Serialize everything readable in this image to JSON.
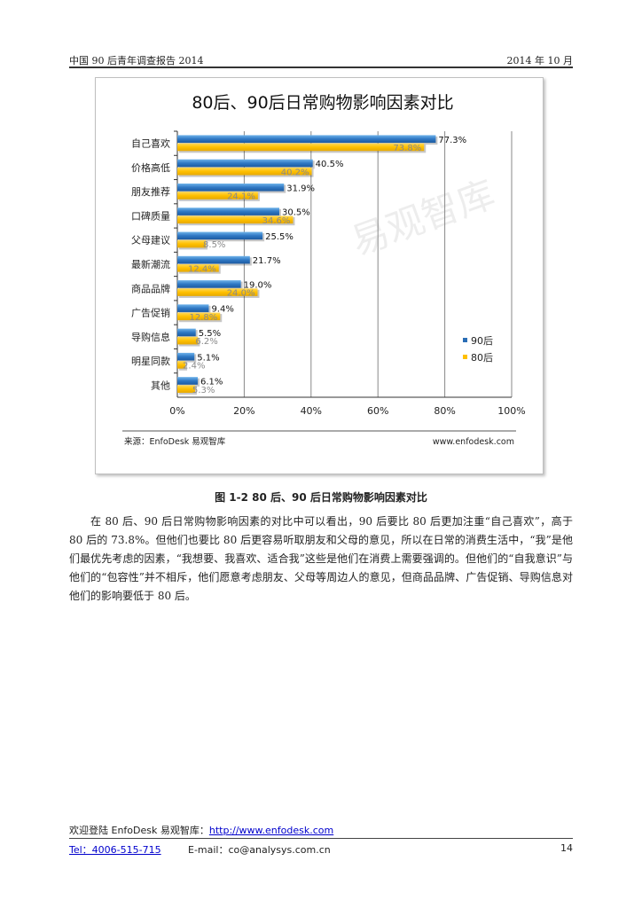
{
  "header": {
    "left": "中国 90 后青年调查报告 2014",
    "right": "2014 年 10 月"
  },
  "chart_data": {
    "type": "bar",
    "title": "80后、90后日常购物影响因素对比",
    "categories": [
      "自己喜欢",
      "价格高低",
      "朋友推荐",
      "口碑质量",
      "父母建议",
      "最新潮流",
      "商品品牌",
      "广告促销",
      "导购信息",
      "明星同款",
      "其他"
    ],
    "series": [
      {
        "name": "90后",
        "values": [
          77.3,
          40.5,
          31.9,
          30.5,
          25.5,
          21.7,
          19.0,
          9.4,
          5.5,
          5.1,
          6.1
        ],
        "labels": [
          "77.3%",
          "40.5%",
          "31.9%",
          "30.5%",
          "25.5%",
          "21.7%",
          "19.0%",
          "9.4%",
          "5.5%",
          "5.1%",
          "6.1%"
        ],
        "color": "#2a6db5"
      },
      {
        "name": "80后",
        "values": [
          73.8,
          40.2,
          24.1,
          34.6,
          8.5,
          12.4,
          24.0,
          12.8,
          6.2,
          2.4,
          5.3
        ],
        "labels": [
          "73.8%",
          "40.2%",
          "24.1%",
          "34.6%",
          "8.5%",
          "12.4%",
          "24.0%",
          "12.8%",
          "6.2%",
          "2.4%",
          "5.3%"
        ],
        "color": "#ffc000"
      }
    ],
    "xlim": [
      0,
      100
    ],
    "xticks": [
      "0%",
      "20%",
      "40%",
      "60%",
      "80%",
      "100%"
    ],
    "xtick_values": [
      0,
      20,
      40,
      60,
      80,
      100
    ],
    "grid": true,
    "legend_position": "right",
    "source": "来源：EnfoDesk 易观智库",
    "website": "www.enfodesk.com",
    "watermark": "易观智库"
  },
  "caption": "图 1-2   80 后、90 后日常购物影响因素对比",
  "body": "在 80 后、90 后日常购物影响因素的对比中可以看出，90 后要比 80 后更加注重“自己喜欢”，高于 80 后的 73.8%。但他们也要比 80 后更容易听取朋友和父母的意见，所以在日常的消费生活中，“我”是他们最优先考虑的因素，“我想要、我喜欢、适合我”这些是他们在消费上需要强调的。但他们的“自我意识”与他们的“包容性”并不相斥，他们愿意考虑朋友、父母等周边人的意见，但商品品牌、广告促销、导购信息对他们的影响要低于 80 后。",
  "footer": {
    "welcome": "欢迎登陆 EnfoDesk  易观智库：",
    "url": "http://www.enfodesk.com",
    "tel": "Tel：4006-515-715",
    "email": "E-mail：co@analysys.com.cn",
    "page": "14"
  }
}
